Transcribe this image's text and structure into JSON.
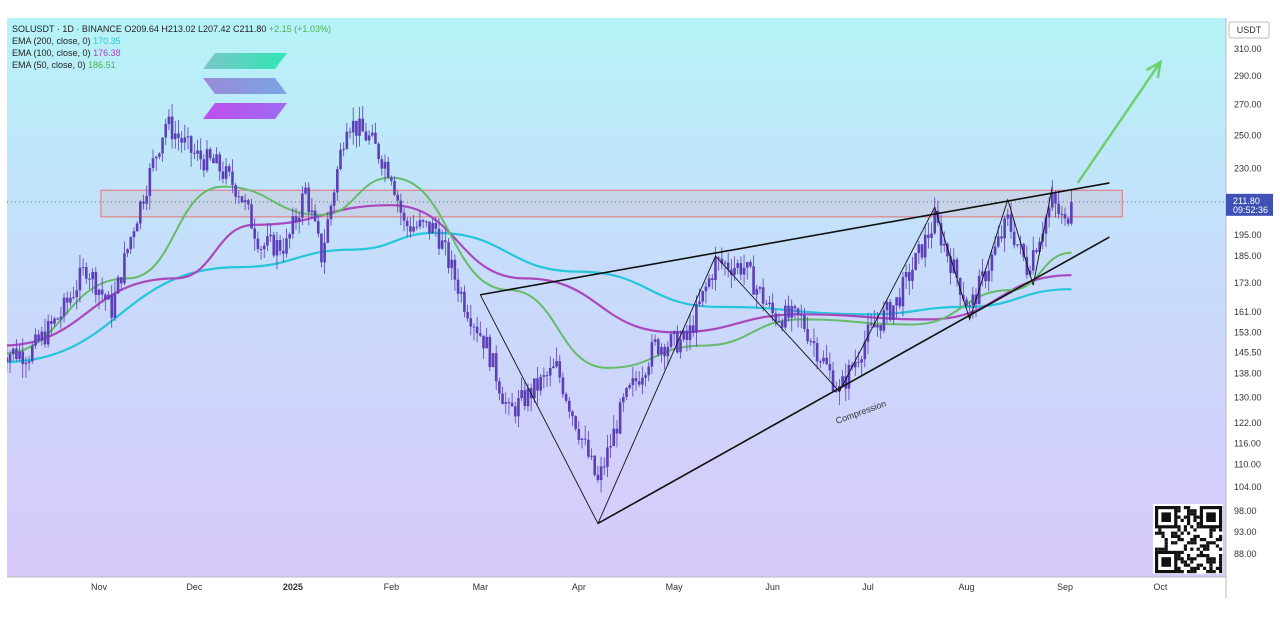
{
  "header": {
    "symbol_line": "SOLUSDT · 1D · BINANCE",
    "open": "O209.64",
    "high": "H213.02",
    "low": "L207.42",
    "close": "C211.80",
    "change": "+2.15 (+1.03%)",
    "ema200_label": "EMA (200, close, 0)",
    "ema200_value": "170.35",
    "ema100_label": "EMA (100, close, 0)",
    "ema100_value": "176.38",
    "ema50_label": "EMA (50, close, 0)",
    "ema50_value": "186.51"
  },
  "price_axis": {
    "currency": "USDT",
    "current_price": "211.80",
    "countdown": "09:52:36",
    "ticks": [
      "310.00",
      "290.00",
      "270.00",
      "250.00",
      "230.00",
      "195.00",
      "185.00",
      "173.00",
      "161.00",
      "153.00",
      "145.50",
      "138.00",
      "130.00",
      "122.00",
      "116.00",
      "110.00",
      "104.00",
      "98.00",
      "93.00",
      "88.00"
    ]
  },
  "annotation": {
    "compression": "Compression"
  },
  "colors": {
    "ema200": "#26c6da",
    "ema100": "#ab47bc",
    "ema50": "#66bb6a",
    "candles": "#5c3fb8",
    "arrow": "#6dd06d",
    "zone": "#e57373"
  },
  "chart_data": {
    "type": "candlestick",
    "symbol": "SOLUSDT",
    "timeframe": "1D",
    "exchange": "BINANCE",
    "x_labels": [
      "Nov",
      "Dec",
      "2025",
      "Feb",
      "Mar",
      "Apr",
      "May",
      "Jun",
      "Jul",
      "Aug",
      "Sep",
      "Oct"
    ],
    "y_scale": "log",
    "ylim": [
      88,
      315
    ],
    "price_path": [
      {
        "t": "Oct 1",
        "p": 146
      },
      {
        "t": "Oct 10",
        "p": 145
      },
      {
        "t": "Oct 20",
        "p": 160
      },
      {
        "t": "Oct 28",
        "p": 180
      },
      {
        "t": "Nov 5",
        "p": 162
      },
      {
        "t": "Nov 12",
        "p": 200
      },
      {
        "t": "Nov 22",
        "p": 258
      },
      {
        "t": "Dec 1",
        "p": 238
      },
      {
        "t": "Dec 8",
        "p": 232
      },
      {
        "t": "Dec 15",
        "p": 218
      },
      {
        "t": "Dec 22",
        "p": 190
      },
      {
        "t": "Dec 30",
        "p": 190
      },
      {
        "t": "Jan 5",
        "p": 218
      },
      {
        "t": "Jan 10",
        "p": 185
      },
      {
        "t": "Jan 18",
        "p": 260
      },
      {
        "t": "Jan 25",
        "p": 248
      },
      {
        "t": "Feb 1",
        "p": 228
      },
      {
        "t": "Feb 5",
        "p": 200
      },
      {
        "t": "Feb 15",
        "p": 198
      },
      {
        "t": "Feb 24",
        "p": 165
      },
      {
        "t": "Mar 3",
        "p": 148
      },
      {
        "t": "Mar 10",
        "p": 125
      },
      {
        "t": "Mar 25",
        "p": 140
      },
      {
        "t": "Apr 7",
        "p": 105
      },
      {
        "t": "Apr 15",
        "p": 128
      },
      {
        "t": "Apr 25",
        "p": 148
      },
      {
        "t": "May 5",
        "p": 150
      },
      {
        "t": "May 14",
        "p": 182
      },
      {
        "t": "May 23",
        "p": 180
      },
      {
        "t": "Jun 1",
        "p": 160
      },
      {
        "t": "Jun 10",
        "p": 158
      },
      {
        "t": "Jun 22",
        "p": 132
      },
      {
        "t": "Jul 1",
        "p": 152
      },
      {
        "t": "Jul 10",
        "p": 165
      },
      {
        "t": "Jul 22",
        "p": 202
      },
      {
        "t": "Aug 2",
        "p": 162
      },
      {
        "t": "Aug 14",
        "p": 202
      },
      {
        "t": "Aug 20",
        "p": 180
      },
      {
        "t": "Aug 28",
        "p": 212
      },
      {
        "t": "Sep 1",
        "p": 200
      },
      {
        "t": "Sep 3",
        "p": 211.8
      }
    ],
    "ema_200": [
      {
        "t": "Oct 1",
        "p": 142
      },
      {
        "t": "Dec 15",
        "p": 180
      },
      {
        "t": "Jan 20",
        "p": 188
      },
      {
        "t": "Feb 15",
        "p": 196
      },
      {
        "t": "Apr 1",
        "p": 178
      },
      {
        "t": "May 15",
        "p": 163
      },
      {
        "t": "Jul 1",
        "p": 160
      },
      {
        "t": "Aug 1",
        "p": 163
      },
      {
        "t": "Sep 3",
        "p": 170.35
      }
    ],
    "ema_100": [
      {
        "t": "Oct 1",
        "p": 148
      },
      {
        "t": "Nov 25",
        "p": 175
      },
      {
        "t": "Dec 20",
        "p": 200
      },
      {
        "t": "Feb 1",
        "p": 210
      },
      {
        "t": "Mar 15",
        "p": 175
      },
      {
        "t": "May 1",
        "p": 153
      },
      {
        "t": "Jun 10",
        "p": 160
      },
      {
        "t": "Jul 20",
        "p": 158
      },
      {
        "t": "Sep 3",
        "p": 176.38
      }
    ],
    "ema_50": [
      {
        "t": "Oct 1",
        "p": 145
      },
      {
        "t": "Nov 10",
        "p": 175
      },
      {
        "t": "Dec 10",
        "p": 220
      },
      {
        "t": "Jan 10",
        "p": 205
      },
      {
        "t": "Feb 1",
        "p": 225
      },
      {
        "t": "Mar 10",
        "p": 170
      },
      {
        "t": "Apr 10",
        "p": 140
      },
      {
        "t": "May 10",
        "p": 148
      },
      {
        "t": "Jun 10",
        "p": 158
      },
      {
        "t": "Jul 15",
        "p": 156
      },
      {
        "t": "Aug 15",
        "p": 170
      },
      {
        "t": "Sep 3",
        "p": 186.51
      }
    ],
    "resistance_zone": [
      204,
      218
    ],
    "upper_trendline": [
      {
        "t": "Mar 1",
        "p": 168
      },
      {
        "t": "Sep 15",
        "p": 222
      }
    ],
    "lower_trendline": [
      {
        "t": "Apr 7",
        "p": 95
      },
      {
        "t": "Sep 15",
        "p": 194
      }
    ],
    "zigzag": [
      {
        "t": "Mar 1",
        "p": 168
      },
      {
        "t": "Apr 7",
        "p": 95
      },
      {
        "t": "May 14",
        "p": 185
      },
      {
        "t": "Jun 22",
        "p": 132
      },
      {
        "t": "Jul 22",
        "p": 209
      },
      {
        "t": "Aug 2",
        "p": 158
      },
      {
        "t": "Aug 14",
        "p": 213
      },
      {
        "t": "Aug 22",
        "p": 172
      },
      {
        "t": "Aug 28",
        "p": 220
      }
    ],
    "projection_arrow": [
      {
        "t": "Sep 5",
        "p": 222
      },
      {
        "t": "Oct 1",
        "p": 300
      }
    ]
  }
}
